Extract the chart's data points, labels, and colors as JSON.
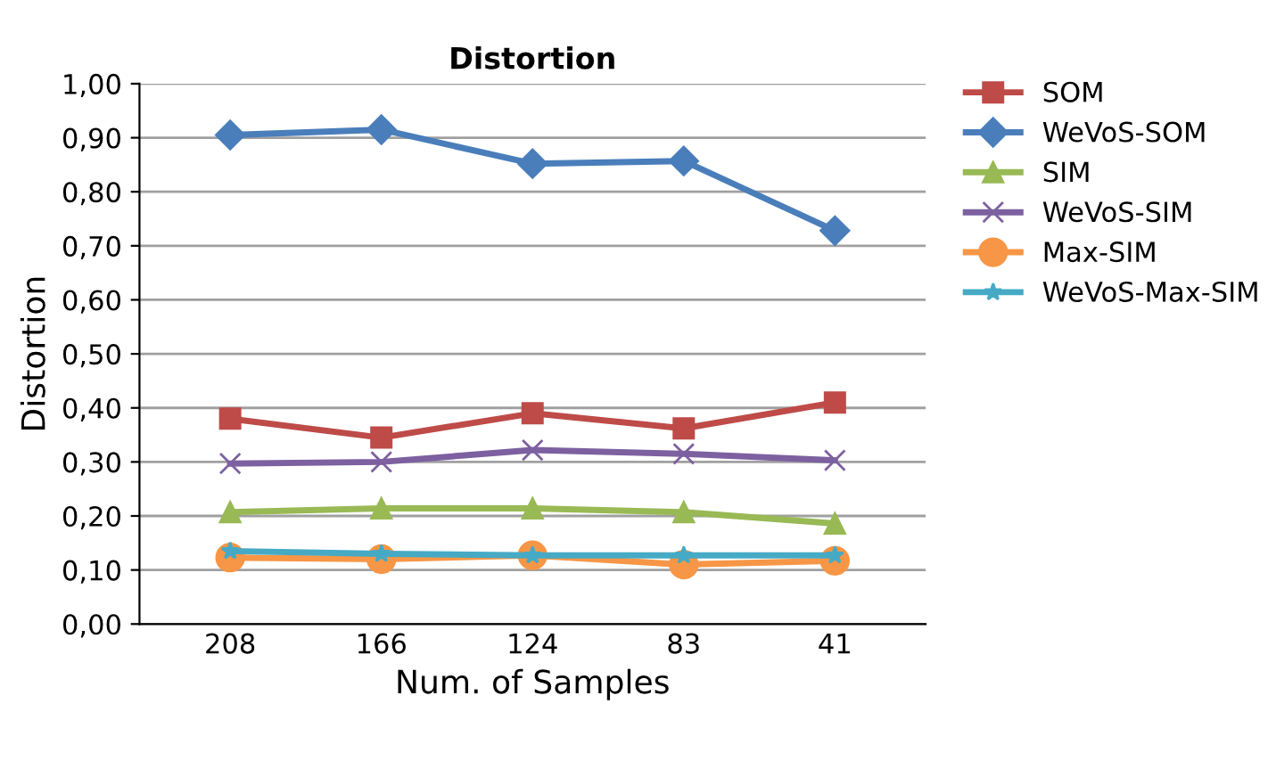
{
  "chart_data": {
    "type": "line",
    "title": "Distortion",
    "xlabel": "Num. of Samples",
    "ylabel": "Distortion",
    "categories": [
      "208",
      "166",
      "124",
      "83",
      "41"
    ],
    "series": [
      {
        "name": "SOM",
        "color": "#be4b48",
        "marker": "square",
        "values": [
          0.38,
          0.345,
          0.39,
          0.362,
          0.41
        ]
      },
      {
        "name": "WeVoS-SOM",
        "color": "#4a7ebb",
        "marker": "diamond",
        "values": [
          0.905,
          0.915,
          0.852,
          0.857,
          0.728
        ]
      },
      {
        "name": "SIM",
        "color": "#98b954",
        "marker": "triangle",
        "values": [
          0.207,
          0.214,
          0.214,
          0.207,
          0.186
        ]
      },
      {
        "name": "WeVoS-SIM",
        "color": "#7d60a0",
        "marker": "cross",
        "values": [
          0.297,
          0.3,
          0.322,
          0.315,
          0.303
        ]
      },
      {
        "name": "Max-SIM",
        "color": "#f79646",
        "marker": "circle",
        "values": [
          0.123,
          0.12,
          0.127,
          0.11,
          0.117
        ]
      },
      {
        "name": "WeVoS-Max-SIM",
        "color": "#46aac5",
        "marker": "star",
        "values": [
          0.135,
          0.13,
          0.127,
          0.127,
          0.127
        ]
      }
    ],
    "ylim": [
      0,
      1
    ],
    "yticks": [
      {
        "value": 0,
        "label": "0,00"
      },
      {
        "value": 0.1,
        "label": "0,10"
      },
      {
        "value": 0.2,
        "label": "0,20"
      },
      {
        "value": 0.3,
        "label": "0,30"
      },
      {
        "value": 0.4,
        "label": "0,40"
      },
      {
        "value": 0.5,
        "label": "0,50"
      },
      {
        "value": 0.6,
        "label": "0,60"
      },
      {
        "value": 0.7,
        "label": "0,70"
      },
      {
        "value": 0.8,
        "label": "0,80"
      },
      {
        "value": 0.9,
        "label": "0,90"
      },
      {
        "value": 1,
        "label": "1,00"
      }
    ],
    "grid": "y",
    "legend": "top right",
    "line_style": "solid"
  }
}
